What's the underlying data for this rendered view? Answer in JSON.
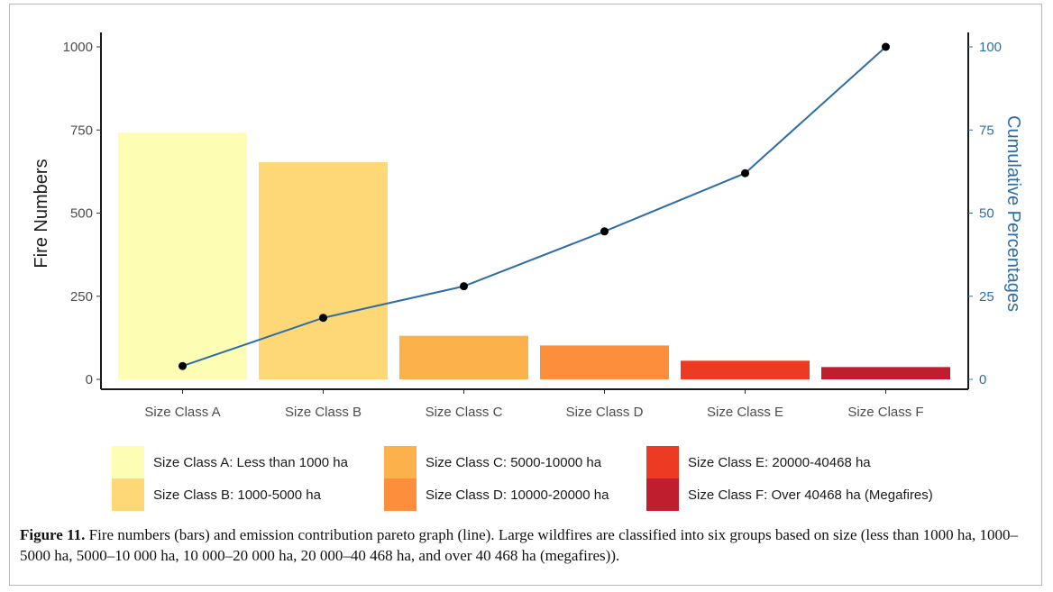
{
  "chart_data": {
    "type": "bar",
    "categories": [
      "Size Class A",
      "Size Class B",
      "Size Class C",
      "Size Class D",
      "Size Class E",
      "Size Class F"
    ],
    "values": [
      742,
      653,
      131,
      102,
      56,
      37
    ],
    "line": {
      "values": [
        4,
        18.5,
        28,
        44.5,
        62,
        100
      ]
    },
    "ylabel": "Fire Numbers",
    "ylabel_right": "Cumulative Percentages",
    "ylim": [
      0,
      1000
    ],
    "ylim_right": [
      0,
      100
    ],
    "yticks": [
      "0",
      "250",
      "500",
      "750",
      "1000"
    ],
    "yticks_right": [
      "0",
      "25",
      "50",
      "75",
      "100"
    ],
    "grid": false,
    "legend_position": "bottom",
    "colors": {
      "bars": [
        "#fefdb4",
        "#fed876",
        "#fdb14b",
        "#fd8e3b",
        "#ed3b23",
        "#be1e2d"
      ],
      "line": "#2f6da6",
      "points": "#000000",
      "right_axis": "#2f6da6"
    }
  },
  "legend": [
    {
      "label": "Size Class A: Less than 1000 ha",
      "color": "#fefdb4"
    },
    {
      "label": "Size Class B: 1000-5000 ha",
      "color": "#fed876"
    },
    {
      "label": "Size Class C: 5000-10000 ha",
      "color": "#fdb14b"
    },
    {
      "label": "Size Class D: 10000-20000 ha",
      "color": "#fd8e3b"
    },
    {
      "label": "Size Class E: 20000-40468 ha",
      "color": "#ed3b23"
    },
    {
      "label": "Size Class F: Over 40468 ha (Megafires)",
      "color": "#be1e2d"
    }
  ],
  "caption": {
    "label": "Figure 11.",
    "text": " Fire numbers (bars) and emission contribution pareto graph (line). Large wildfires are classified into six groups based on size (less than 1000 ha, 1000–5000 ha, 5000–10 000 ha, 10 000–20 000 ha, 20 000–40 468 ha, and over 40 468 ha (megafires))."
  }
}
